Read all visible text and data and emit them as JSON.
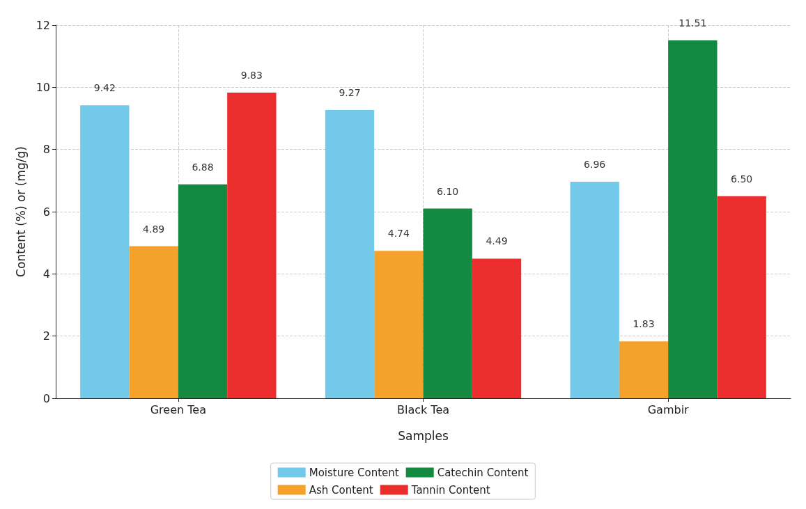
{
  "chart_data": {
    "type": "bar",
    "xlabel": "Samples",
    "ylabel": "Content (%) or (mg/g)",
    "categories": [
      "Green Tea",
      "Black Tea",
      "Gambir"
    ],
    "series": [
      {
        "name": "Moisture Content",
        "color": "#72c9ea",
        "values": [
          9.42,
          9.27,
          6.96
        ],
        "value_labels": [
          "9.42",
          "9.27",
          "6.96"
        ]
      },
      {
        "name": "Ash Content",
        "color": "#f4a22c",
        "values": [
          4.89,
          4.74,
          1.83
        ],
        "value_labels": [
          "4.89",
          "4.74",
          "1.83"
        ]
      },
      {
        "name": "Catechin Content",
        "color": "#138a3f",
        "values": [
          6.88,
          6.1,
          11.51
        ],
        "value_labels": [
          "6.88",
          "6.10",
          "11.51"
        ]
      },
      {
        "name": "Tannin Content",
        "color": "#ec2d2d",
        "values": [
          9.83,
          4.49,
          6.5
        ],
        "value_labels": [
          "9.83",
          "4.49",
          "6.50"
        ]
      }
    ],
    "ylim": [
      0,
      12
    ],
    "yticks": [
      0,
      2,
      4,
      6,
      8,
      10,
      12
    ],
    "grid": true,
    "legend": "bottom"
  }
}
